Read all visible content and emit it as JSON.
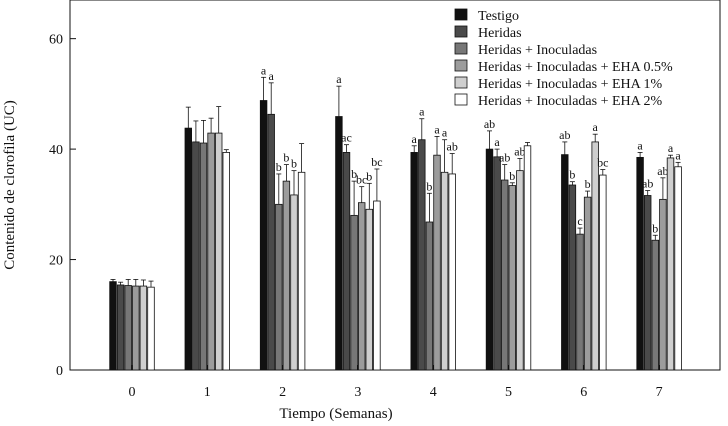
{
  "chart_data": {
    "type": "bar",
    "title": "",
    "xlabel": "Tiempo (Semanas)",
    "ylabel": "Contenido de clorofila (UC)",
    "ylim": [
      0,
      67
    ],
    "yticks": [
      0,
      20,
      40,
      60
    ],
    "categories": [
      "0",
      "1",
      "2",
      "3",
      "4",
      "5",
      "6",
      "7"
    ],
    "grid": false,
    "legend_position": "top-right",
    "series": [
      {
        "name": "Testigo",
        "color": "#111111",
        "values": [
          16.0,
          43.8,
          48.8,
          45.9,
          39.4,
          40.0,
          39.0,
          38.5
        ],
        "errors": [
          0.4,
          3.8,
          4.2,
          5.5,
          1.2,
          3.3,
          2.3,
          0.9
        ],
        "labels": [
          "",
          "",
          "a",
          "a",
          "a",
          "ab",
          "ab",
          "a"
        ]
      },
      {
        "name": "Heridas",
        "color": "#4a4a4a",
        "values": [
          15.4,
          41.3,
          46.3,
          39.4,
          41.7,
          38.6,
          33.5,
          31.6
        ],
        "errors": [
          0.5,
          3.8,
          5.7,
          1.4,
          3.8,
          1.4,
          0.6,
          0.9
        ],
        "labels": [
          "",
          "",
          "a",
          "ac",
          "a",
          "a",
          "b",
          "ab"
        ]
      },
      {
        "name": "Heridas + Inoculadas",
        "color": "#777777",
        "values": [
          15.3,
          41.1,
          30.0,
          28.0,
          26.8,
          34.4,
          24.6,
          23.5
        ],
        "errors": [
          1.1,
          4.1,
          5.5,
          6.2,
          5.2,
          2.8,
          1.1,
          0.9
        ],
        "labels": [
          "",
          "",
          "b",
          "b",
          "b",
          "ab",
          "c",
          "b"
        ]
      },
      {
        "name": "Heridas + Inoculadas + EHA 0.5%",
        "color": "#9c9c9c",
        "values": [
          15.2,
          42.9,
          34.2,
          30.3,
          38.9,
          33.4,
          31.3,
          30.9
        ],
        "errors": [
          1.2,
          2.7,
          3.0,
          2.9,
          3.4,
          0.5,
          1.1,
          3.9
        ],
        "labels": [
          "",
          "",
          "b",
          "bc",
          "a",
          "b",
          "b",
          "ab"
        ]
      },
      {
        "name": "Heridas + Inoculadas + EHA 1%",
        "color": "#cfcfcf",
        "values": [
          15.2,
          42.9,
          31.7,
          29.1,
          35.8,
          36.1,
          41.3,
          38.4
        ],
        "errors": [
          1.1,
          4.8,
          4.4,
          4.7,
          5.9,
          2.2,
          1.4,
          0.5
        ],
        "labels": [
          "",
          "",
          "b",
          "b",
          "a",
          "ab",
          "a",
          "a"
        ]
      },
      {
        "name": "Heridas + Inoculadas + EHA 2%",
        "color": "#ffffff",
        "values": [
          15.0,
          39.4,
          35.8,
          30.6,
          35.5,
          40.6,
          35.3,
          36.8
        ],
        "errors": [
          1.1,
          0.5,
          5.2,
          5.8,
          3.7,
          0.6,
          1.0,
          0.8
        ],
        "labels": [
          "",
          "",
          "",
          "bc",
          "ab",
          "",
          "bc",
          "a"
        ]
      }
    ]
  }
}
